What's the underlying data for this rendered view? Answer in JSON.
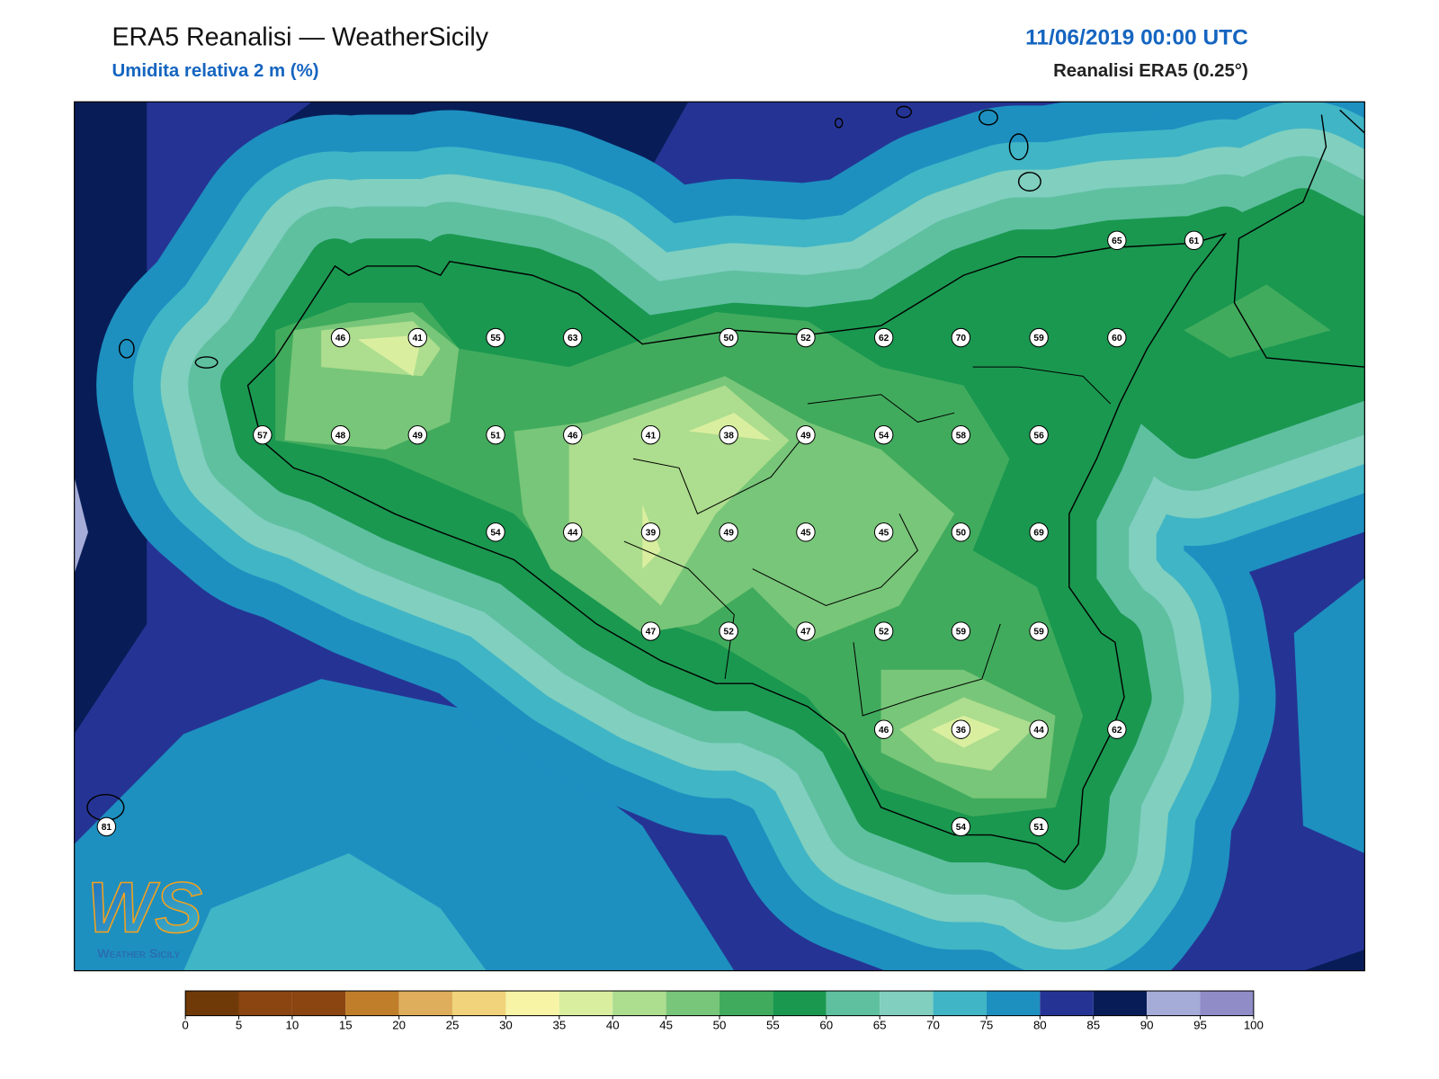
{
  "header": {
    "title": "ERA5 Reanalisi — WeatherSicily",
    "subtitle": "Umidita relativa 2 m (%)",
    "datetime": "11/06/2019 00:00 UTC",
    "source": "Reanalisi ERA5 (0.25°)"
  },
  "stations": [
    65,
    61,
    46,
    41,
    55,
    63,
    50,
    52,
    62,
    70,
    59,
    60,
    57,
    48,
    49,
    51,
    46,
    41,
    38,
    49,
    54,
    58,
    56,
    54,
    44,
    39,
    49,
    45,
    45,
    50,
    69,
    47,
    52,
    47,
    52,
    59,
    59,
    46,
    36,
    44,
    62,
    81,
    54,
    51
  ],
  "colorbar": {
    "ticks": [
      0,
      5,
      10,
      15,
      20,
      25,
      30,
      35,
      40,
      45,
      50,
      55,
      60,
      65,
      70,
      75,
      80,
      85,
      90,
      95,
      100
    ],
    "colors": [
      "#6f3a08",
      "#8a4510",
      "#8a4510",
      "#c07e2a",
      "#dfae5c",
      "#f0d37a",
      "#f7f4a6",
      "#d9ef9f",
      "#addd8e",
      "#78c679",
      "#41ab5d",
      "#1a9850",
      "#5fc0a0",
      "#80cfbf",
      "#40b5c6",
      "#1d90c0",
      "#253494",
      "#081d58",
      "#a6acd8",
      "#8f8cc8"
    ]
  },
  "logo": {
    "mark": "WS",
    "text": "Weather Sicily"
  }
}
